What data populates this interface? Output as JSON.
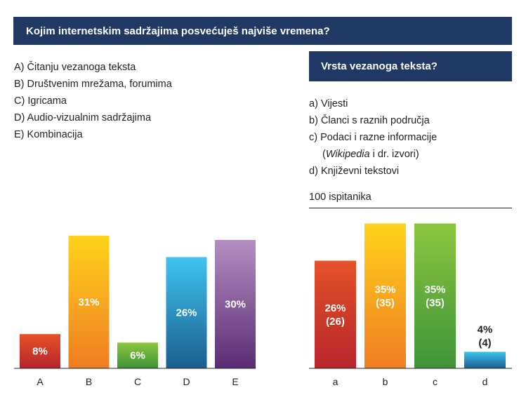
{
  "left_panel": {
    "question": "Kojim internetskim sadržajima posvećuješ najviše vremena?",
    "options": [
      {
        "key": "A)",
        "text": "Čitanju vezanoga teksta"
      },
      {
        "key": "B)",
        "text": "Društvenim mrežama, forumima"
      },
      {
        "key": "C)",
        "text": "Igricama"
      },
      {
        "key": "D)",
        "text": "Audio-vizualnim sadržajima"
      },
      {
        "key": "E)",
        "text": "Kombinacija"
      }
    ]
  },
  "right_panel": {
    "question": "Vrsta vezanoga teksta?",
    "options": [
      {
        "key": "a)",
        "text": "Vijesti"
      },
      {
        "key": "b)",
        "text": "Članci s raznih područja"
      },
      {
        "key": "c)",
        "text": "Podaci i razne informacije"
      },
      {
        "key": "d)",
        "text": "Književni tekstovi"
      }
    ],
    "option_c_note": {
      "open": "(",
      "italic": "Wikipedia",
      "rest": " i dr. izvori)"
    },
    "respondents": "100 ispitanika"
  },
  "chart_data": [
    {
      "type": "bar",
      "categories": [
        "A",
        "B",
        "C",
        "D",
        "E"
      ],
      "values": [
        8,
        31,
        6,
        26,
        30
      ],
      "data_labels": [
        "8%",
        "31%",
        "6%",
        "26%",
        "30%"
      ],
      "colors": [
        [
          "#e4522a",
          "#b7242b"
        ],
        [
          "#ffd31b",
          "#f07d22"
        ],
        [
          "#8cc63f",
          "#3d9339"
        ],
        [
          "#3fc4ef",
          "#1a5e8f"
        ],
        [
          "#b48ec2",
          "#5b2c73"
        ]
      ],
      "ylim": [
        0,
        35
      ]
    },
    {
      "type": "bar",
      "categories": [
        "a",
        "b",
        "c",
        "d"
      ],
      "values": [
        26,
        35,
        35,
        4
      ],
      "data_labels": [
        "26%\n(26)",
        "35%\n(35)",
        "35%\n(35)",
        "4%\n(4)"
      ],
      "colors": [
        [
          "#e4522a",
          "#b7242b"
        ],
        [
          "#ffd31b",
          "#f07d22"
        ],
        [
          "#8cc63f",
          "#3d9339"
        ],
        [
          "#3fc4ef",
          "#1a5e8f"
        ]
      ],
      "ylim": [
        0,
        35
      ]
    }
  ]
}
